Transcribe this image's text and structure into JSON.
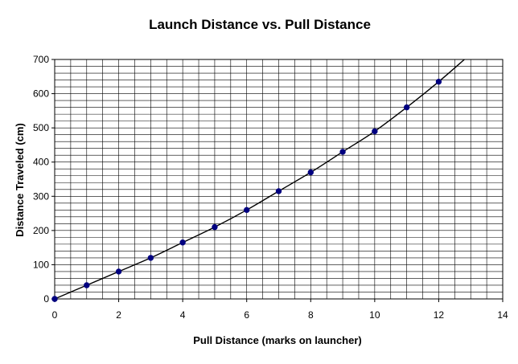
{
  "chart_data": {
    "type": "scatter",
    "title": "Launch Distance vs. Pull Distance",
    "xlabel": "Pull Distance (marks on launcher)",
    "ylabel": "Distance Traveled (cm)",
    "xlim": [
      0,
      14
    ],
    "ylim": [
      0,
      700
    ],
    "xticks": [
      0,
      2,
      4,
      6,
      8,
      10,
      12,
      14
    ],
    "yticks": [
      0,
      100,
      200,
      300,
      400,
      500,
      600,
      700
    ],
    "grid": true,
    "legend": "none",
    "trendline": "smooth curve through points",
    "marker_color": "#000080",
    "line_color": "#000000",
    "points": [
      {
        "x": 0,
        "y": 0
      },
      {
        "x": 1,
        "y": 40
      },
      {
        "x": 2,
        "y": 80
      },
      {
        "x": 3,
        "y": 120
      },
      {
        "x": 4,
        "y": 165
      },
      {
        "x": 5,
        "y": 210
      },
      {
        "x": 6,
        "y": 260
      },
      {
        "x": 7,
        "y": 315
      },
      {
        "x": 8,
        "y": 370
      },
      {
        "x": 9,
        "y": 430
      },
      {
        "x": 10,
        "y": 490
      },
      {
        "x": 11,
        "y": 560
      },
      {
        "x": 12,
        "y": 635
      }
    ]
  }
}
